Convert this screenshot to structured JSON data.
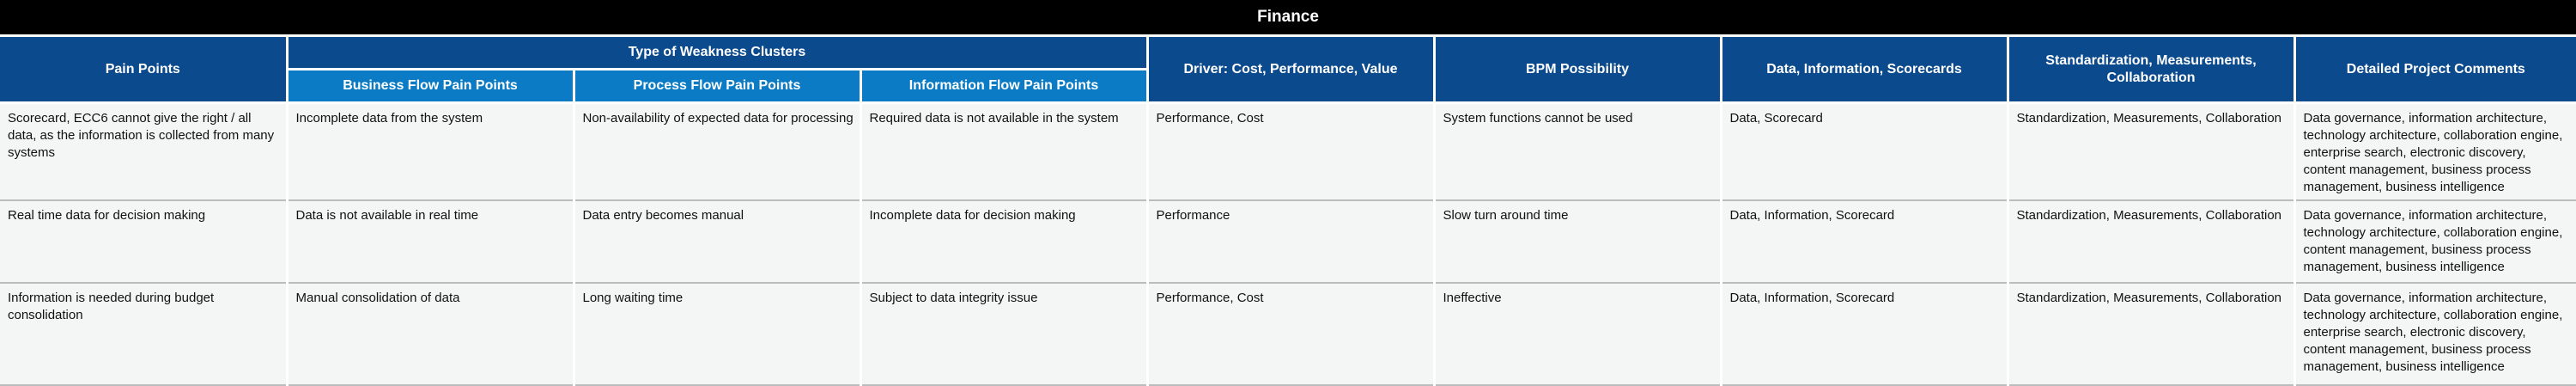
{
  "title": "Finance",
  "headers": {
    "pain_points": "Pain Points",
    "weakness_clusters": "Type of Weakness Clusters",
    "business_flow": "Business Flow Pain Points",
    "process_flow": "Process Flow Pain Points",
    "information_flow": "Information Flow Pain Points",
    "driver": "Driver: Cost, Performance, Value",
    "bpm": "BPM Possibility",
    "data_info": "Data, Information, Scorecards",
    "standardization": "Standardization, Measurements, Collaboration",
    "comments": "Detailed Project Comments"
  },
  "rows": [
    {
      "pain_point": "Scorecard, ECC6 cannot give the right / all data, as the information is collected from many systems",
      "business_flow": "Incomplete data from the system",
      "process_flow": "Non-availability of expected data for processing",
      "information_flow": "Required data is not available in the system",
      "driver": "Performance, Cost",
      "bpm": "System functions cannot be used",
      "data_info": "Data, Scorecard",
      "standardization": "Standardization, Measurements, Collaboration",
      "comments": "Data governance, information architecture, technology architecture, collaboration engine, enterprise search,  electronic discovery, content management, business process management, business intelligence"
    },
    {
      "pain_point": "Real time data for decision making",
      "business_flow": "Data is not available in real time",
      "process_flow": "Data entry becomes manual",
      "information_flow": "Incomplete data for decision making",
      "driver": "Performance",
      "bpm": "Slow turn around time",
      "data_info": "Data, Information, Scorecard",
      "standardization": "Standardization, Measurements, Collaboration",
      "comments": "Data governance, information architecture, technology architecture, collaboration engine, content management, business process management, business intelligence"
    },
    {
      "pain_point": "Information is needed during budget consolidation",
      "business_flow": "Manual consolidation of data",
      "process_flow": "Long waiting time",
      "information_flow": "Subject to data integrity issue",
      "driver": "Performance, Cost",
      "bpm": "Ineffective",
      "data_info": "Data, Information, Scorecard",
      "standardization": "Standardization, Measurements, Collaboration",
      "comments": "Data governance, information architecture, technology architecture, collaboration engine, enterprise search, electronic discovery, content management, business process management, business intelligence"
    }
  ]
}
